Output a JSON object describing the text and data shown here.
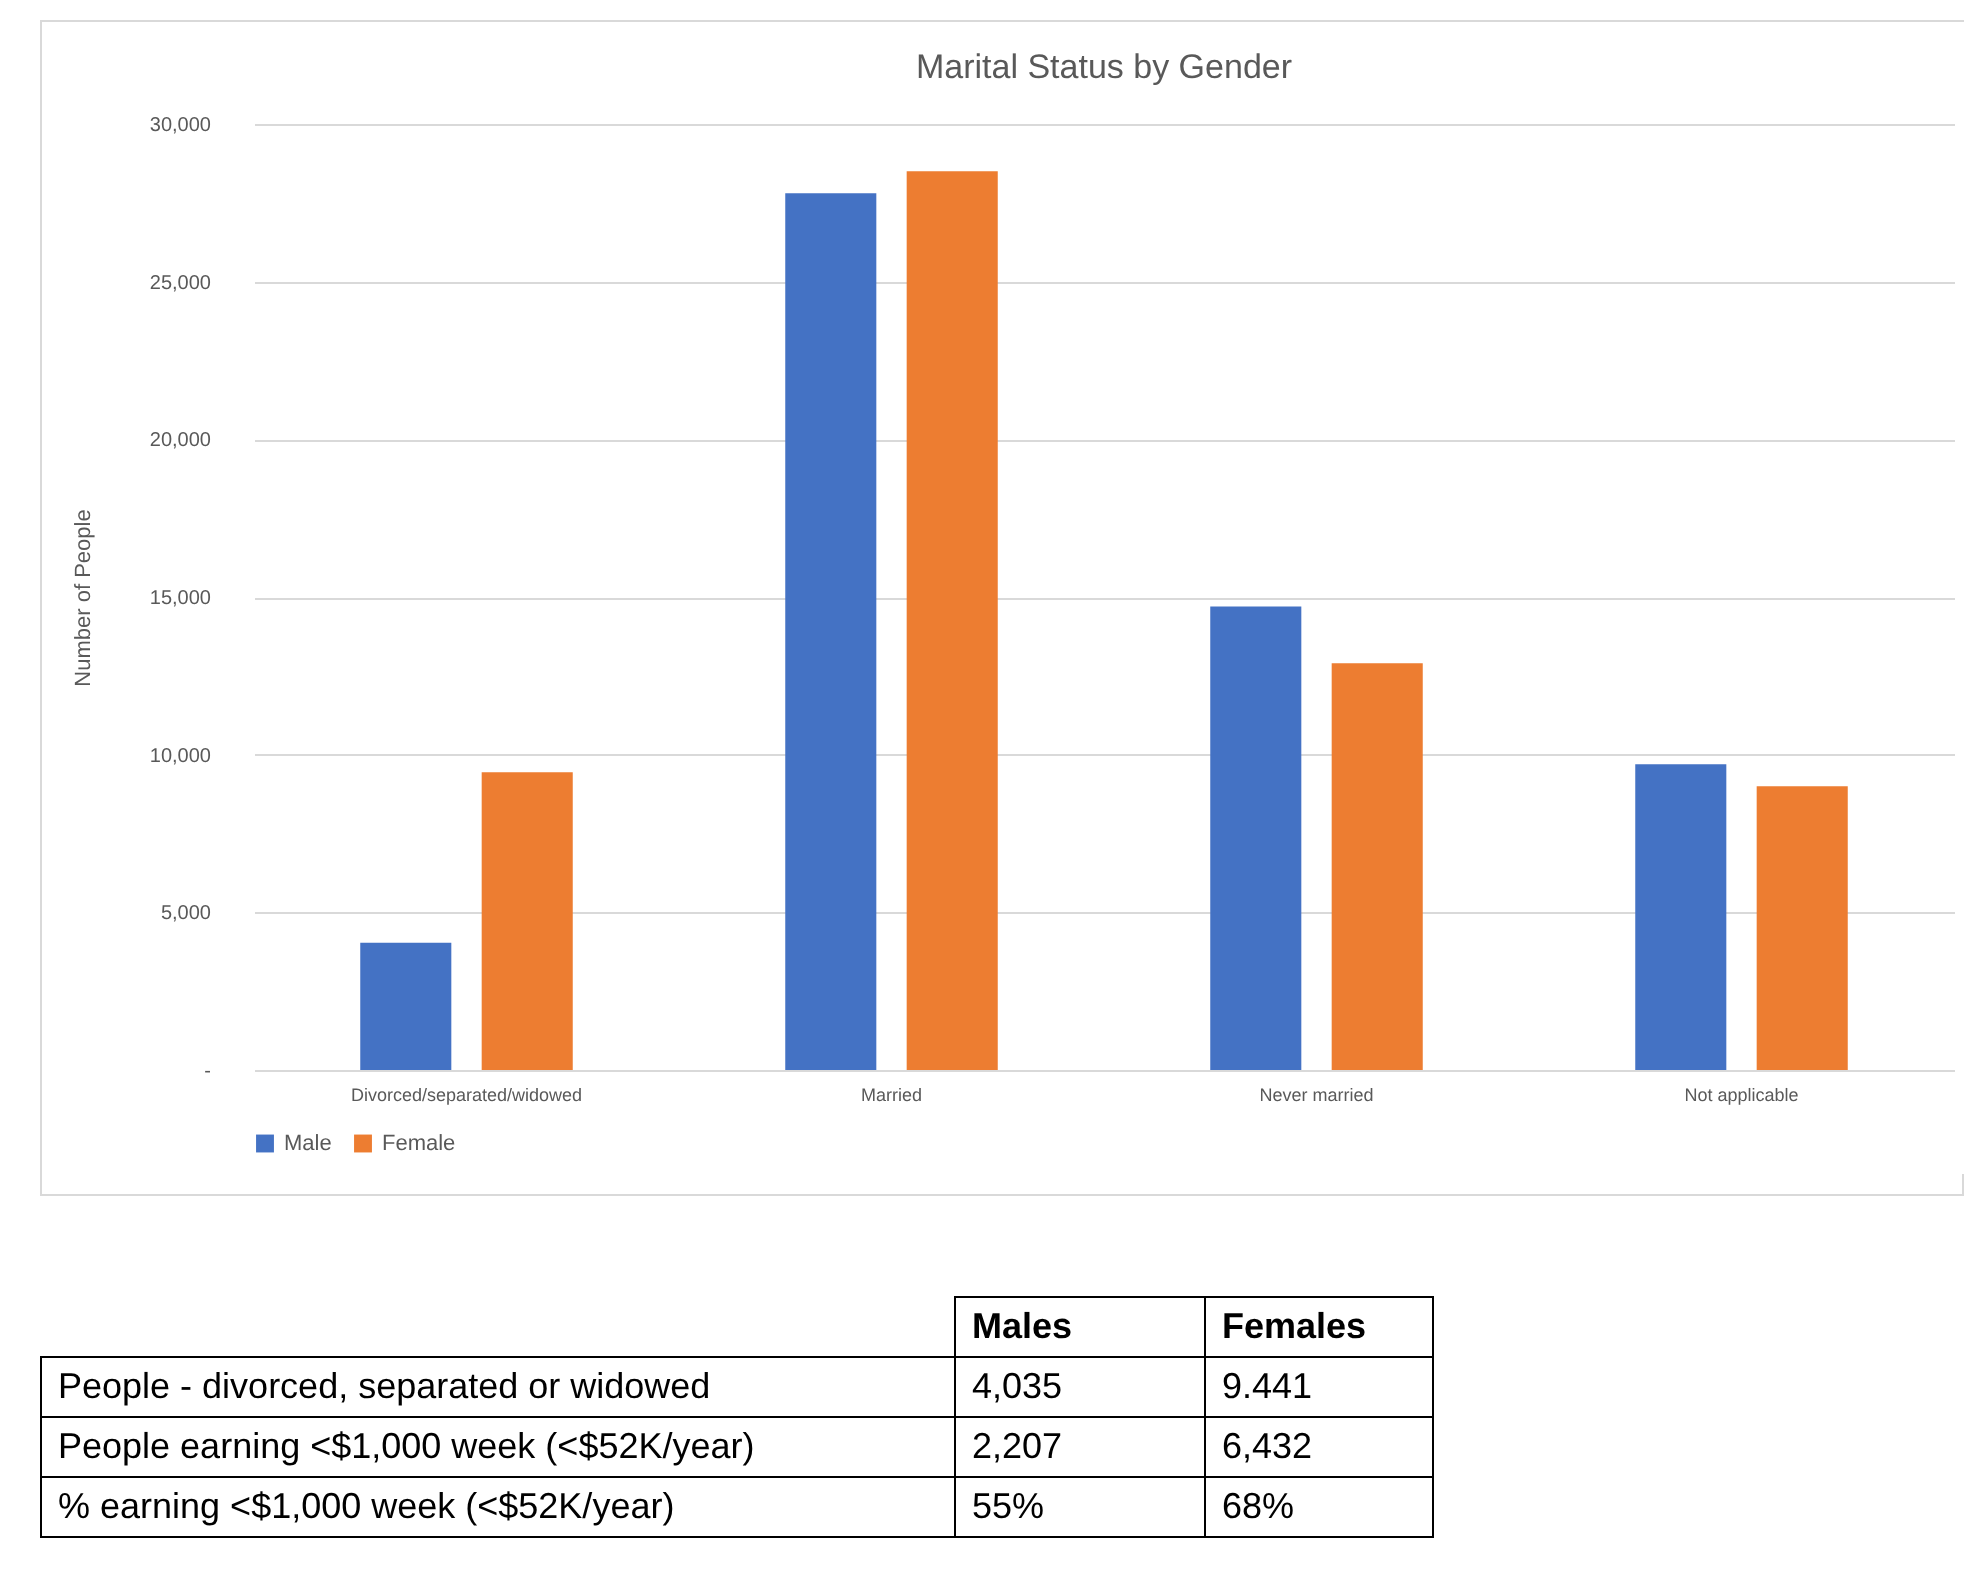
{
  "chart_data": [
    {
      "type": "bar",
      "title": "Marital Status by Gender",
      "ylabel": "Number of People",
      "categories": [
        "Divorced/separated/widowed",
        "Married",
        "Never married",
        "Not applicable"
      ],
      "series": [
        {
          "name": "Male",
          "color": "#4472c4",
          "values": [
            4035,
            27800,
            14700,
            9700
          ]
        },
        {
          "name": "Female",
          "color": "#ed7d31",
          "values": [
            9441,
            28500,
            12900,
            9000
          ]
        }
      ],
      "ylim": [
        0,
        30000
      ],
      "yticks": [
        {
          "value": 0,
          "label": "-"
        },
        {
          "value": 5000,
          "label": "5,000"
        },
        {
          "value": 10000,
          "label": "10,000"
        },
        {
          "value": 15000,
          "label": "15,000"
        },
        {
          "value": 20000,
          "label": "20,000"
        },
        {
          "value": 25000,
          "label": "25,000"
        },
        {
          "value": 30000,
          "label": "30,000"
        }
      ],
      "grid": "y",
      "legend": "bottom"
    },
    {
      "type": "other",
      "annotations": [
        "Males",
        "Females",
        "People - divorced, separated or widowed",
        "4,035",
        "9.441",
        "People earning <$1,000 week (<$52K/year)",
        "2,207",
        "6,432",
        "% earning <$1,000 week (<$52K/year)",
        "55%",
        "68%"
      ]
    }
  ]
}
